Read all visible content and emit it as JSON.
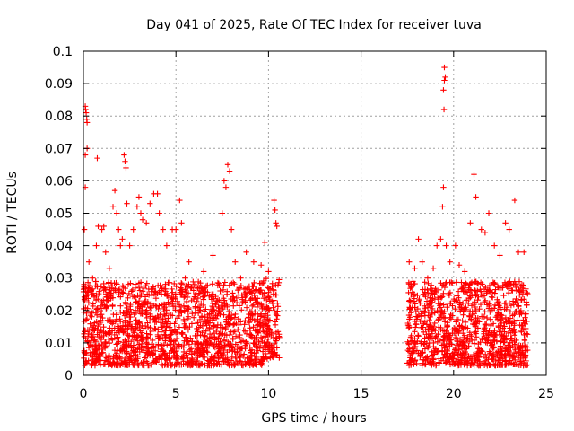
{
  "chart_data": {
    "type": "scatter",
    "title": "Day 041 of 2025, Rate Of TEC Index for receiver tuva",
    "xlabel": "GPS time / hours",
    "ylabel": "ROTI / TECUs",
    "xlim": [
      0,
      25
    ],
    "ylim": [
      0,
      0.1
    ],
    "xticks": [
      0,
      5,
      10,
      15,
      20,
      25
    ],
    "xtick_labels": [
      "0",
      "5",
      "10",
      "15",
      "20",
      "25"
    ],
    "yticks": [
      0,
      0.01,
      0.02,
      0.03,
      0.04,
      0.05,
      0.06,
      0.07,
      0.08,
      0.09,
      0.1
    ],
    "ytick_labels": [
      "0",
      "0.01",
      "0.02",
      "0.03",
      "0.04",
      "0.05",
      "0.06",
      "0.07",
      "0.08",
      "0.09",
      "0.1"
    ],
    "grid": true,
    "marker": "+",
    "color": "#ff0000",
    "series": [
      {
        "points": [
          [
            0.1,
            0.083
          ],
          [
            0.12,
            0.082
          ],
          [
            0.15,
            0.081
          ],
          [
            0.18,
            0.079
          ],
          [
            0.2,
            0.078
          ],
          [
            0.1,
            0.068
          ],
          [
            0.2,
            0.07
          ],
          [
            0.1,
            0.058
          ],
          [
            0.05,
            0.045
          ],
          [
            0.3,
            0.035
          ],
          [
            0.5,
            0.03
          ],
          [
            0.7,
            0.04
          ],
          [
            0.8,
            0.046
          ],
          [
            1.0,
            0.045
          ],
          [
            1.1,
            0.046
          ],
          [
            1.2,
            0.038
          ],
          [
            0.75,
            0.067
          ],
          [
            1.4,
            0.033
          ],
          [
            1.6,
            0.052
          ],
          [
            1.7,
            0.057
          ],
          [
            1.8,
            0.05
          ],
          [
            1.9,
            0.045
          ],
          [
            2.0,
            0.04
          ],
          [
            2.1,
            0.042
          ],
          [
            2.2,
            0.068
          ],
          [
            2.25,
            0.066
          ],
          [
            2.3,
            0.064
          ],
          [
            2.35,
            0.053
          ],
          [
            2.5,
            0.04
          ],
          [
            2.7,
            0.045
          ],
          [
            2.9,
            0.052
          ],
          [
            3.0,
            0.055
          ],
          [
            3.1,
            0.05
          ],
          [
            3.2,
            0.048
          ],
          [
            3.4,
            0.047
          ],
          [
            3.6,
            0.053
          ],
          [
            3.8,
            0.056
          ],
          [
            4.0,
            0.056
          ],
          [
            4.1,
            0.05
          ],
          [
            4.3,
            0.045
          ],
          [
            4.5,
            0.04
          ],
          [
            4.8,
            0.045
          ],
          [
            5.0,
            0.045
          ],
          [
            5.2,
            0.054
          ],
          [
            5.3,
            0.047
          ],
          [
            5.5,
            0.03
          ],
          [
            5.7,
            0.035
          ],
          [
            6.0,
            0.028
          ],
          [
            6.5,
            0.032
          ],
          [
            7.0,
            0.037
          ],
          [
            7.5,
            0.05
          ],
          [
            7.6,
            0.06
          ],
          [
            7.7,
            0.058
          ],
          [
            7.8,
            0.065
          ],
          [
            7.9,
            0.063
          ],
          [
            8.0,
            0.045
          ],
          [
            8.2,
            0.035
          ],
          [
            8.5,
            0.03
          ],
          [
            8.8,
            0.038
          ],
          [
            9.2,
            0.035
          ],
          [
            9.6,
            0.034
          ],
          [
            9.8,
            0.041
          ],
          [
            10.0,
            0.032
          ],
          [
            10.3,
            0.054
          ],
          [
            10.35,
            0.051
          ],
          [
            10.4,
            0.047
          ],
          [
            10.45,
            0.046
          ],
          [
            17.6,
            0.035
          ],
          [
            17.9,
            0.033
          ],
          [
            18.1,
            0.042
          ],
          [
            18.3,
            0.035
          ],
          [
            18.6,
            0.03
          ],
          [
            18.9,
            0.033
          ],
          [
            19.1,
            0.04
          ],
          [
            19.3,
            0.042
          ],
          [
            19.4,
            0.052
          ],
          [
            19.45,
            0.058
          ],
          [
            19.5,
            0.095
          ],
          [
            19.55,
            0.092
          ],
          [
            19.5,
            0.091
          ],
          [
            19.45,
            0.088
          ],
          [
            19.48,
            0.082
          ],
          [
            19.6,
            0.04
          ],
          [
            19.8,
            0.035
          ],
          [
            20.1,
            0.04
          ],
          [
            20.3,
            0.034
          ],
          [
            20.6,
            0.032
          ],
          [
            20.9,
            0.047
          ],
          [
            21.1,
            0.062
          ],
          [
            21.2,
            0.055
          ],
          [
            21.5,
            0.045
          ],
          [
            21.7,
            0.044
          ],
          [
            21.9,
            0.05
          ],
          [
            22.2,
            0.04
          ],
          [
            22.5,
            0.037
          ],
          [
            22.8,
            0.047
          ],
          [
            23.0,
            0.045
          ],
          [
            23.3,
            0.054
          ],
          [
            23.5,
            0.038
          ],
          [
            23.8,
            0.038
          ]
        ],
        "bands": [
          {
            "x0": 0.0,
            "x1": 9.7,
            "ymin": 0.003,
            "ymax": 0.029,
            "n": 1500
          },
          {
            "x0": 9.7,
            "x1": 10.6,
            "ymin": 0.005,
            "ymax": 0.03,
            "n": 130
          },
          {
            "x0": 17.5,
            "x1": 24.0,
            "ymin": 0.003,
            "ymax": 0.029,
            "n": 1000
          }
        ]
      }
    ]
  }
}
